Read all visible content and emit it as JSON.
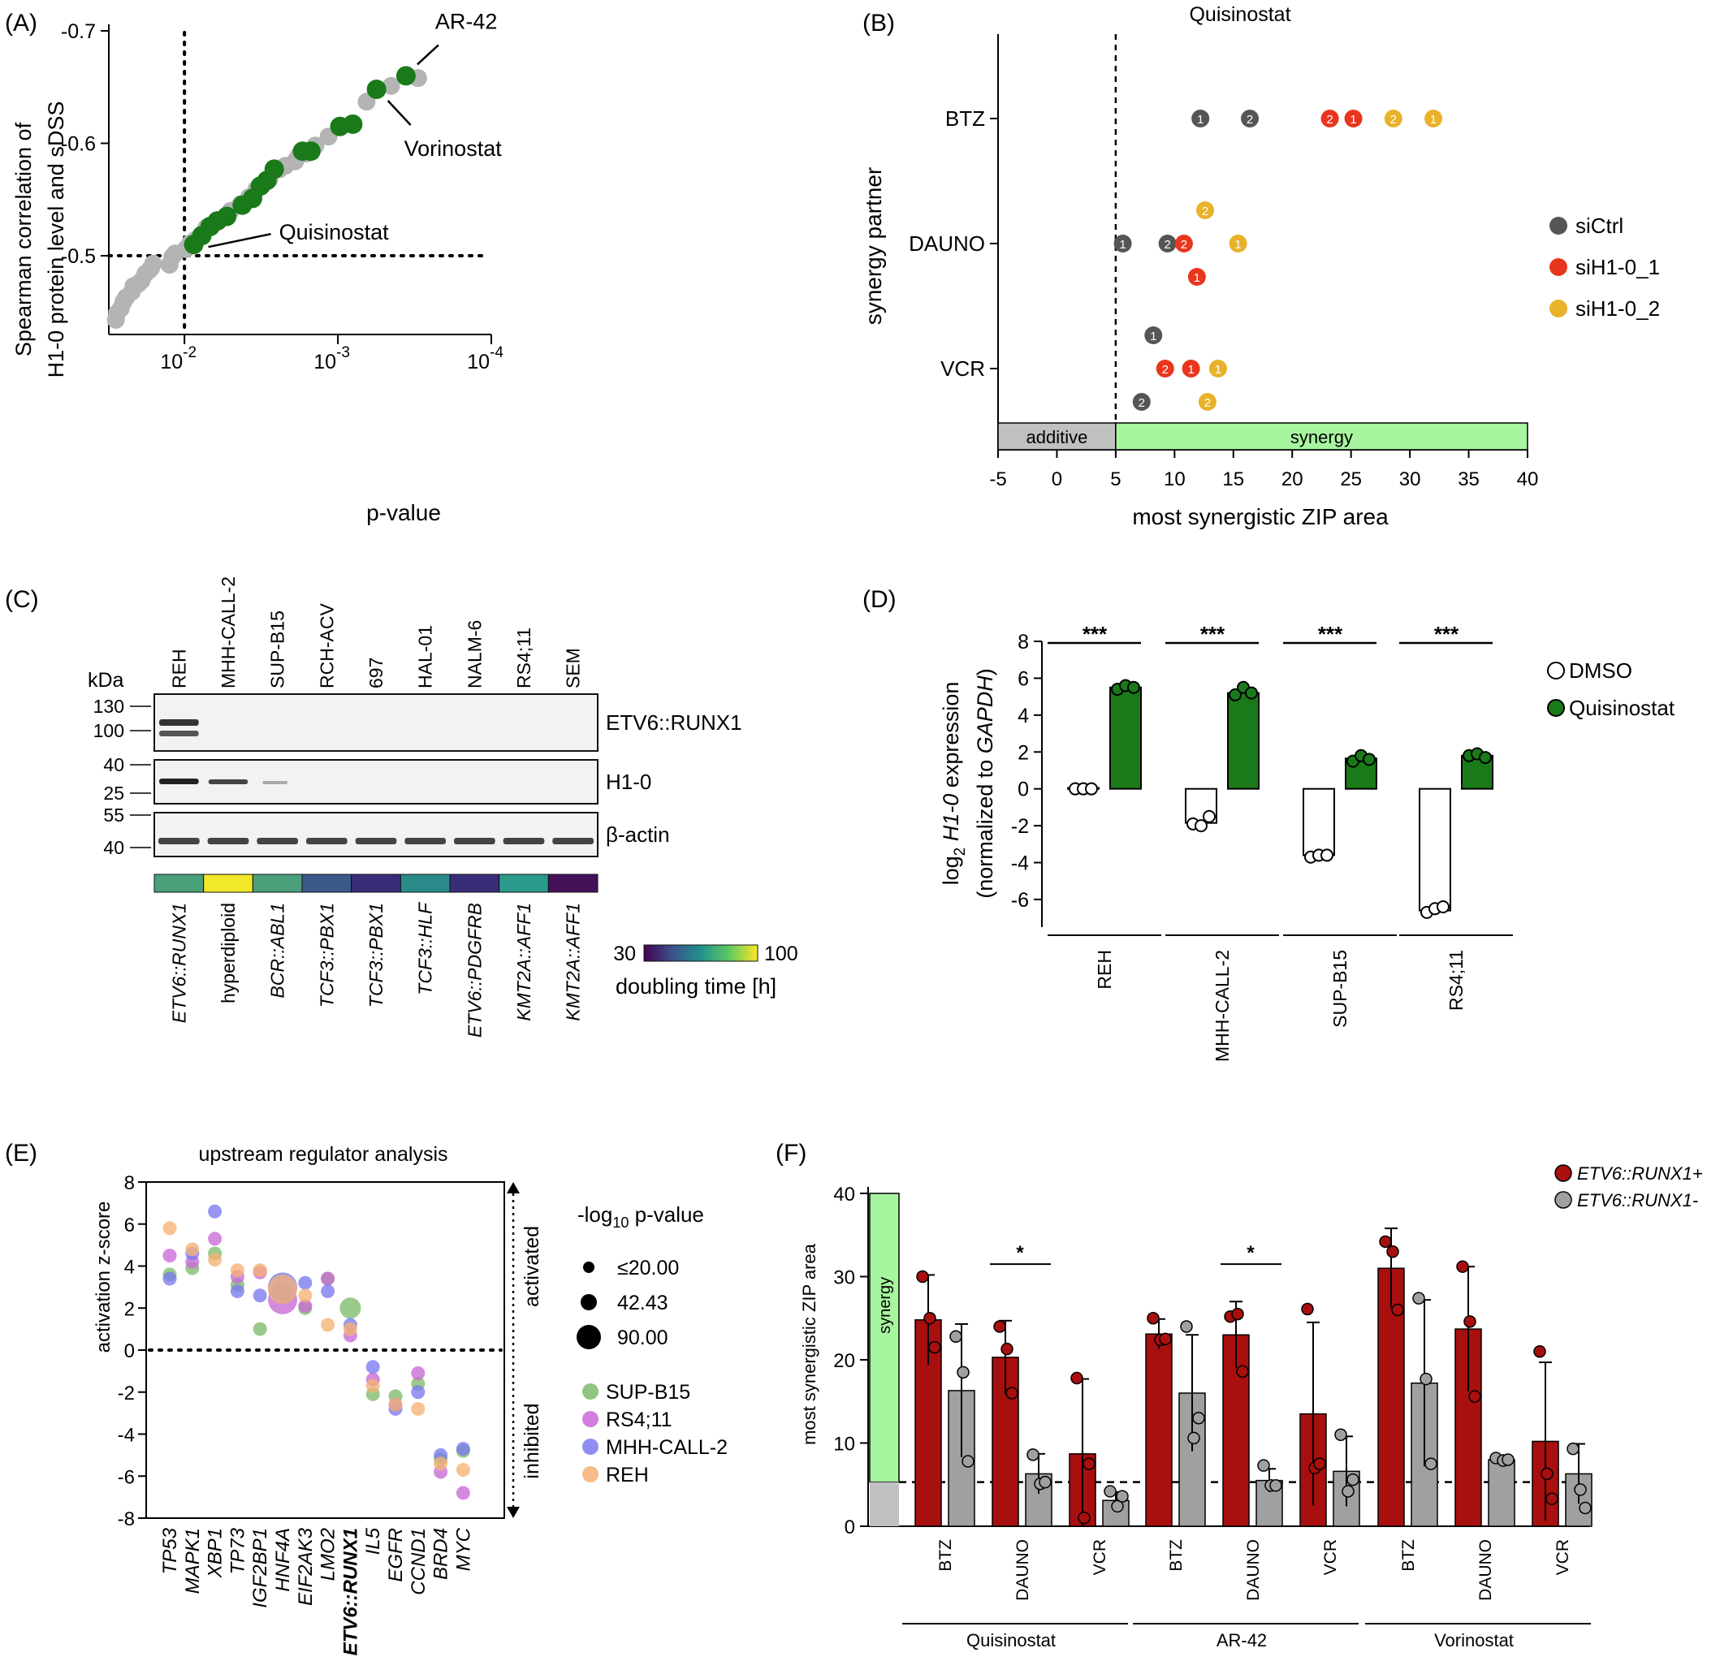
{
  "chart_data": [
    {
      "panel": "(A)",
      "type": "scatter",
      "title": "",
      "xlabel": "p-value",
      "ylabel": [
        "Spearman correlation of",
        "H1-0 protein level and sDSS"
      ],
      "x_scale": "log, reversed",
      "xlim": [
        0.03,
        0.0001
      ],
      "ylim": [
        -0.43,
        -0.7
      ],
      "x_ticks": [
        {
          "base": "10",
          "exp": "-2",
          "value": 0.01
        },
        {
          "base": "10",
          "exp": "-3",
          "value": 0.001
        },
        {
          "base": "10",
          "exp": "-4",
          "value": 0.0001
        }
      ],
      "y_ticks": [
        "-0.7",
        "-0.6",
        "-0.5"
      ],
      "y_tick_values": [
        -0.7,
        -0.6,
        -0.5
      ],
      "ref_lines": {
        "x": 0.01,
        "y": -0.5
      },
      "colors": {
        "highlight": "#1a7a1a",
        "other": "#b4b4b4"
      },
      "points_other": [
        [
          0.028,
          -0.443
        ],
        [
          0.0275,
          -0.449
        ],
        [
          0.026,
          -0.453
        ],
        [
          0.025,
          -0.459
        ],
        [
          0.024,
          -0.463
        ],
        [
          0.022,
          -0.468
        ],
        [
          0.0215,
          -0.473
        ],
        [
          0.02,
          -0.475
        ],
        [
          0.019,
          -0.478
        ],
        [
          0.018,
          -0.484
        ],
        [
          0.017,
          -0.487
        ],
        [
          0.0165,
          -0.489
        ],
        [
          0.016,
          -0.493
        ],
        [
          0.0125,
          -0.492
        ],
        [
          0.012,
          -0.499
        ],
        [
          0.0115,
          -0.502
        ],
        [
          0.0098,
          -0.506
        ],
        [
          0.0092,
          -0.511
        ],
        [
          0.0085,
          -0.514
        ],
        [
          0.0072,
          -0.525
        ],
        [
          0.0065,
          -0.528
        ],
        [
          0.005,
          -0.54
        ],
        [
          0.0043,
          -0.546
        ],
        [
          0.0038,
          -0.552
        ],
        [
          0.0034,
          -0.559
        ],
        [
          0.0031,
          -0.563
        ],
        [
          0.0028,
          -0.568
        ],
        [
          0.0024,
          -0.577
        ],
        [
          0.0022,
          -0.58
        ],
        [
          0.0019,
          -0.584
        ],
        [
          0.0018,
          -0.589
        ],
        [
          0.0016,
          -0.591
        ],
        [
          0.0014,
          -0.598
        ],
        [
          0.00115,
          -0.606
        ],
        [
          0.00065,
          -0.637
        ],
        [
          0.00045,
          -0.651
        ],
        [
          0.0003,
          -0.658
        ]
      ],
      "points_highlight": [
        [
          0.0087,
          -0.51
        ],
        [
          0.0077,
          -0.518
        ],
        [
          0.0068,
          -0.526
        ],
        [
          0.0061,
          -0.531
        ],
        [
          0.0053,
          -0.535
        ],
        [
          0.0042,
          -0.545
        ],
        [
          0.0036,
          -0.551
        ],
        [
          0.0032,
          -0.562
        ],
        [
          0.0029,
          -0.567
        ],
        [
          0.0026,
          -0.577
        ],
        [
          0.0017,
          -0.593
        ],
        [
          0.0015,
          -0.593
        ],
        [
          0.00097,
          -0.615
        ],
        [
          0.0008,
          -0.617
        ],
        [
          0.00056,
          -0.648
        ],
        [
          0.00036,
          -0.66
        ]
      ],
      "annotations": [
        {
          "text": "AR-42",
          "x": 0.00036,
          "y": -0.66
        },
        {
          "text": "Vorinostat",
          "x": 0.00056,
          "y": -0.648
        },
        {
          "text": "Quisinostat",
          "x": 0.0087,
          "y": -0.51
        }
      ]
    },
    {
      "panel": "(B)",
      "type": "scatter",
      "title": "Quisinostat",
      "xlabel": "most synergistic ZIP area",
      "ylabel": "synergy partner",
      "xlim": [
        -5,
        40
      ],
      "x_ticks": [
        "-5",
        "0",
        "5",
        "10",
        "15",
        "20",
        "25",
        "30",
        "35",
        "40"
      ],
      "categories": [
        "BTZ",
        "DAUNO",
        "VCR"
      ],
      "ref_line_x": 5,
      "bands": [
        {
          "label": "additive",
          "from": -5,
          "to": 5,
          "color": "#c0c0c0"
        },
        {
          "label": "synergy",
          "from": 5,
          "to": 40,
          "color": "#a8f5a0"
        }
      ],
      "series": [
        {
          "name": "siCtrl",
          "color": "#555555"
        },
        {
          "name": "siH1-0_1",
          "color": "#e8361e"
        },
        {
          "name": "siH1-0_2",
          "color": "#e8b22a"
        }
      ],
      "points": [
        {
          "cat": "BTZ",
          "offset": 0,
          "x": 12.2,
          "s": 0,
          "lab": "1"
        },
        {
          "cat": "BTZ",
          "offset": 0,
          "x": 16.4,
          "s": 0,
          "lab": "2"
        },
        {
          "cat": "BTZ",
          "offset": 0,
          "x": 23.2,
          "s": 1,
          "lab": "2"
        },
        {
          "cat": "BTZ",
          "offset": 0,
          "x": 25.2,
          "s": 1,
          "lab": "1"
        },
        {
          "cat": "BTZ",
          "offset": 0,
          "x": 28.6,
          "s": 2,
          "lab": "2"
        },
        {
          "cat": "BTZ",
          "offset": 0,
          "x": 32,
          "s": 2,
          "lab": "1"
        },
        {
          "cat": "DAUNO",
          "offset": -1,
          "x": 12.6,
          "s": 2,
          "lab": "2"
        },
        {
          "cat": "DAUNO",
          "offset": 0,
          "x": 5.6,
          "s": 0,
          "lab": "1"
        },
        {
          "cat": "DAUNO",
          "offset": 0,
          "x": 9.4,
          "s": 0,
          "lab": "2"
        },
        {
          "cat": "DAUNO",
          "offset": 0,
          "x": 10.8,
          "s": 1,
          "lab": "2"
        },
        {
          "cat": "DAUNO",
          "offset": 0,
          "x": 15.4,
          "s": 2,
          "lab": "1"
        },
        {
          "cat": "DAUNO",
          "offset": 1,
          "x": 11.9,
          "s": 1,
          "lab": "1"
        },
        {
          "cat": "VCR",
          "offset": -1,
          "x": 8.2,
          "s": 0,
          "lab": "1"
        },
        {
          "cat": "VCR",
          "offset": 0,
          "x": 9.2,
          "s": 1,
          "lab": "2"
        },
        {
          "cat": "VCR",
          "offset": 0,
          "x": 11.4,
          "s": 1,
          "lab": "1"
        },
        {
          "cat": "VCR",
          "offset": 0,
          "x": 13.7,
          "s": 2,
          "lab": "1"
        },
        {
          "cat": "VCR",
          "offset": 1,
          "x": 7.2,
          "s": 0,
          "lab": "2"
        },
        {
          "cat": "VCR",
          "offset": 1,
          "x": 12.8,
          "s": 2,
          "lab": "2"
        }
      ]
    },
    {
      "panel": "(C)",
      "type": "table",
      "kda_label": "kDa",
      "cell_lines": [
        "REH",
        "MHH-CALL-2",
        "SUP-B15",
        "RCH-ACV",
        "697",
        "HAL-01",
        "NALM-6",
        "RS4;11",
        "SEM"
      ],
      "blots": [
        {
          "label": "ETV6::RUNX1",
          "markers": [
            "130",
            "100"
          ]
        },
        {
          "label": "H1-0",
          "markers": [
            "40",
            "25"
          ]
        },
        {
          "label": "β-actin",
          "markers": [
            "55",
            "40"
          ]
        }
      ],
      "subtypes": [
        "ETV6::RUNX1",
        "hyperdiploid",
        "BCR::ABL1",
        "TCF3::PBX1",
        "TCF3::PBX1",
        "TCF3::HLF",
        "ETV6::PDGFRB",
        "KMT2A::AFF1",
        "KMT2A::AFF1"
      ],
      "heat_colors": [
        "#4aa07a",
        "#f2e82a",
        "#4aa07a",
        "#3b5a8a",
        "#3a2d78",
        "#2a8a8a",
        "#3a2d78",
        "#2a9a8a",
        "#45125a"
      ],
      "colorbar": {
        "min": "30",
        "max": "100",
        "label": "doubling time [h]",
        "colors": [
          "#440154",
          "#3b528b",
          "#21918c",
          "#5ec962",
          "#fde725"
        ]
      }
    },
    {
      "panel": "(D)",
      "type": "bar",
      "ylabel_parts": {
        "pre": "log",
        "sub": "2",
        "gene": "H1-0",
        "post": "expression",
        "line2_pre": "(normalized to ",
        "line2_gene": "GAPDH",
        "line2_post": ")"
      },
      "ylim": [
        -7.5,
        8
      ],
      "y_ticks": [
        "8",
        "6",
        "4",
        "2",
        "0",
        "-2",
        "-4",
        "-6"
      ],
      "y_tick_values": [
        8,
        6,
        4,
        2,
        0,
        -2,
        -4,
        -6
      ],
      "categories": [
        "REH",
        "MHH-CALL-2",
        "SUP-B15",
        "RS4;11"
      ],
      "series": [
        {
          "name": "DMSO",
          "color": "#ffffff",
          "values": [
            0.05,
            -1.85,
            -3.6,
            -6.6
          ],
          "points": [
            [
              0,
              0,
              0
            ],
            [
              -1.9,
              -2.0,
              -1.5
            ],
            [
              -3.7,
              -3.6,
              -3.6
            ],
            [
              -6.7,
              -6.5,
              -6.4
            ]
          ]
        },
        {
          "name": "Quisinostat",
          "color": "#1a7a1a",
          "values": [
            5.5,
            5.2,
            1.65,
            1.8
          ],
          "points": [
            [
              5.4,
              5.6,
              5.5
            ],
            [
              5.1,
              5.5,
              5.2
            ],
            [
              1.5,
              1.8,
              1.6
            ],
            [
              1.8,
              1.9,
              1.7
            ]
          ]
        }
      ],
      "significance": [
        "***",
        "***",
        "***",
        "***"
      ]
    },
    {
      "panel": "(E)",
      "type": "scatter",
      "title": "upstream regulator analysis",
      "ylabel": "activation z-score",
      "ylim": [
        -8,
        8
      ],
      "y_ticks": [
        "8",
        "6",
        "4",
        "2",
        "0",
        "-2",
        "-4",
        "-6",
        "-8"
      ],
      "y_tick_values": [
        8,
        6,
        4,
        2,
        0,
        -2,
        -4,
        -6,
        -8
      ],
      "side_labels": {
        "top": "activated",
        "bottom": "inhibited"
      },
      "size_legend": {
        "title_pre": "-log",
        "title_sub": "10",
        "title_post": "p-value",
        "entries": [
          "≤20.00",
          "42.43",
          "90.00"
        ]
      },
      "categories": [
        "TP53",
        "MAPK1",
        "XBP1",
        "TP73",
        "IGF2BP1",
        "HNF4A",
        "EIF2AK3",
        "LMO2",
        "ETV6::RUNX1",
        "IL5",
        "EGFR",
        "CCND1",
        "BRD4",
        "MYC"
      ],
      "bold_category": "ETV6::RUNX1",
      "series": [
        {
          "name": "SUP-B15",
          "color": "#7dbb6a",
          "values": [
            3.6,
            3.9,
            4.6,
            3.1,
            1.0,
            2.7,
            2.0,
            3.4,
            2.0,
            -2.1,
            -2.2,
            -1.6,
            -5.2,
            -4.8
          ]
        },
        {
          "name": "RS4;11",
          "color": "#c86ad6",
          "values": [
            4.5,
            4.2,
            5.3,
            3.5,
            3.7,
            2.4,
            2.1,
            3.4,
            0.7,
            -1.4,
            -2.6,
            -1.1,
            -5.8,
            -6.8
          ]
        },
        {
          "name": "MHH-CALL-2",
          "color": "#7a7af0",
          "values": [
            3.4,
            4.6,
            6.6,
            2.8,
            2.6,
            3.0,
            3.2,
            2.8,
            1.2,
            -0.8,
            -2.8,
            -2.0,
            -5.0,
            -4.7
          ]
        },
        {
          "name": "REH",
          "color": "#f5b274",
          "values": [
            5.8,
            4.8,
            4.3,
            3.8,
            3.8,
            2.9,
            2.6,
            1.2,
            1.0,
            -1.7,
            -2.6,
            -2.8,
            -5.4,
            -5.7
          ]
        }
      ],
      "sizes": [
        [
          1,
          1,
          1,
          1,
          1,
          2,
          1,
          1,
          2,
          1,
          1,
          1,
          1,
          1
        ],
        [
          1,
          1,
          1,
          1,
          1,
          3,
          1,
          1,
          1,
          1,
          1,
          1,
          1,
          1
        ],
        [
          1,
          1,
          1,
          1,
          1,
          3,
          1,
          1,
          1,
          1,
          1,
          1,
          1,
          1
        ],
        [
          1,
          1,
          1,
          1,
          1,
          3,
          1,
          1,
          1,
          1,
          1,
          1,
          1,
          1
        ]
      ]
    },
    {
      "panel": "(F)",
      "type": "bar",
      "ylabel": "most synergistic ZIP area",
      "ylim": [
        0,
        40
      ],
      "y_ticks": [
        "40",
        "30",
        "20",
        "10",
        "0"
      ],
      "y_tick_values": [
        40,
        30,
        20,
        10,
        0
      ],
      "ref_line_y": 5.3,
      "synergy_label": "synergy",
      "bands": {
        "synergy_color": "#a8f5a0",
        "additive_color": "#c0c0c0"
      },
      "groups": [
        "Quisinostat",
        "AR-42",
        "Vorinostat"
      ],
      "drugs": [
        "BTZ",
        "DAUNO",
        "VCR"
      ],
      "series": [
        {
          "name": "ETV6::RUNX1+",
          "color": "#a80f0f",
          "values": [
            24.8,
            20.3,
            8.7,
            23.1,
            23.0,
            13.5,
            31.0,
            23.7,
            10.2
          ],
          "err": [
            5.4,
            4.4,
            9.0,
            1.8,
            4.0,
            11.0,
            4.8,
            7.5,
            9.5
          ],
          "points": [
            [
              30,
              25,
              21.5
            ],
            [
              24,
              21.3,
              16
            ],
            [
              17.8,
              1,
              7.5
            ],
            [
              25,
              22.4,
              22.5
            ],
            [
              25.2,
              25.5,
              18.6
            ],
            [
              26.1,
              7,
              7.5
            ],
            [
              34.2,
              33,
              26
            ],
            [
              31.2,
              24.6,
              15.6
            ],
            [
              21,
              6.3,
              3.3
            ]
          ]
        },
        {
          "name": "ETV6::RUNX1-",
          "color": "#a0a0a0",
          "values": [
            16.3,
            6.3,
            3.1,
            16,
            5.5,
            6.6,
            17.2,
            8.0,
            6.3
          ],
          "err": [
            8.0,
            2.4,
            1.0,
            7.0,
            1.4,
            4.2,
            10.0,
            0.5,
            3.6
          ],
          "points": [
            [
              22.8,
              18.5,
              7.8
            ],
            [
              8.6,
              5.1,
              5.3
            ],
            [
              4.2,
              2.4,
              3.6
            ],
            [
              24,
              10.6,
              13
            ],
            [
              7.3,
              4.9,
              4.9
            ],
            [
              11,
              4.2,
              5.6
            ],
            [
              27.4,
              17.7,
              7.5
            ],
            [
              8.2,
              7.9,
              8.0
            ],
            [
              9.3,
              4.4,
              2.2
            ]
          ]
        }
      ],
      "significance": [
        {
          "group": 0,
          "drug": 1,
          "label": "*"
        },
        {
          "group": 1,
          "drug": 1,
          "label": "*"
        }
      ]
    }
  ]
}
